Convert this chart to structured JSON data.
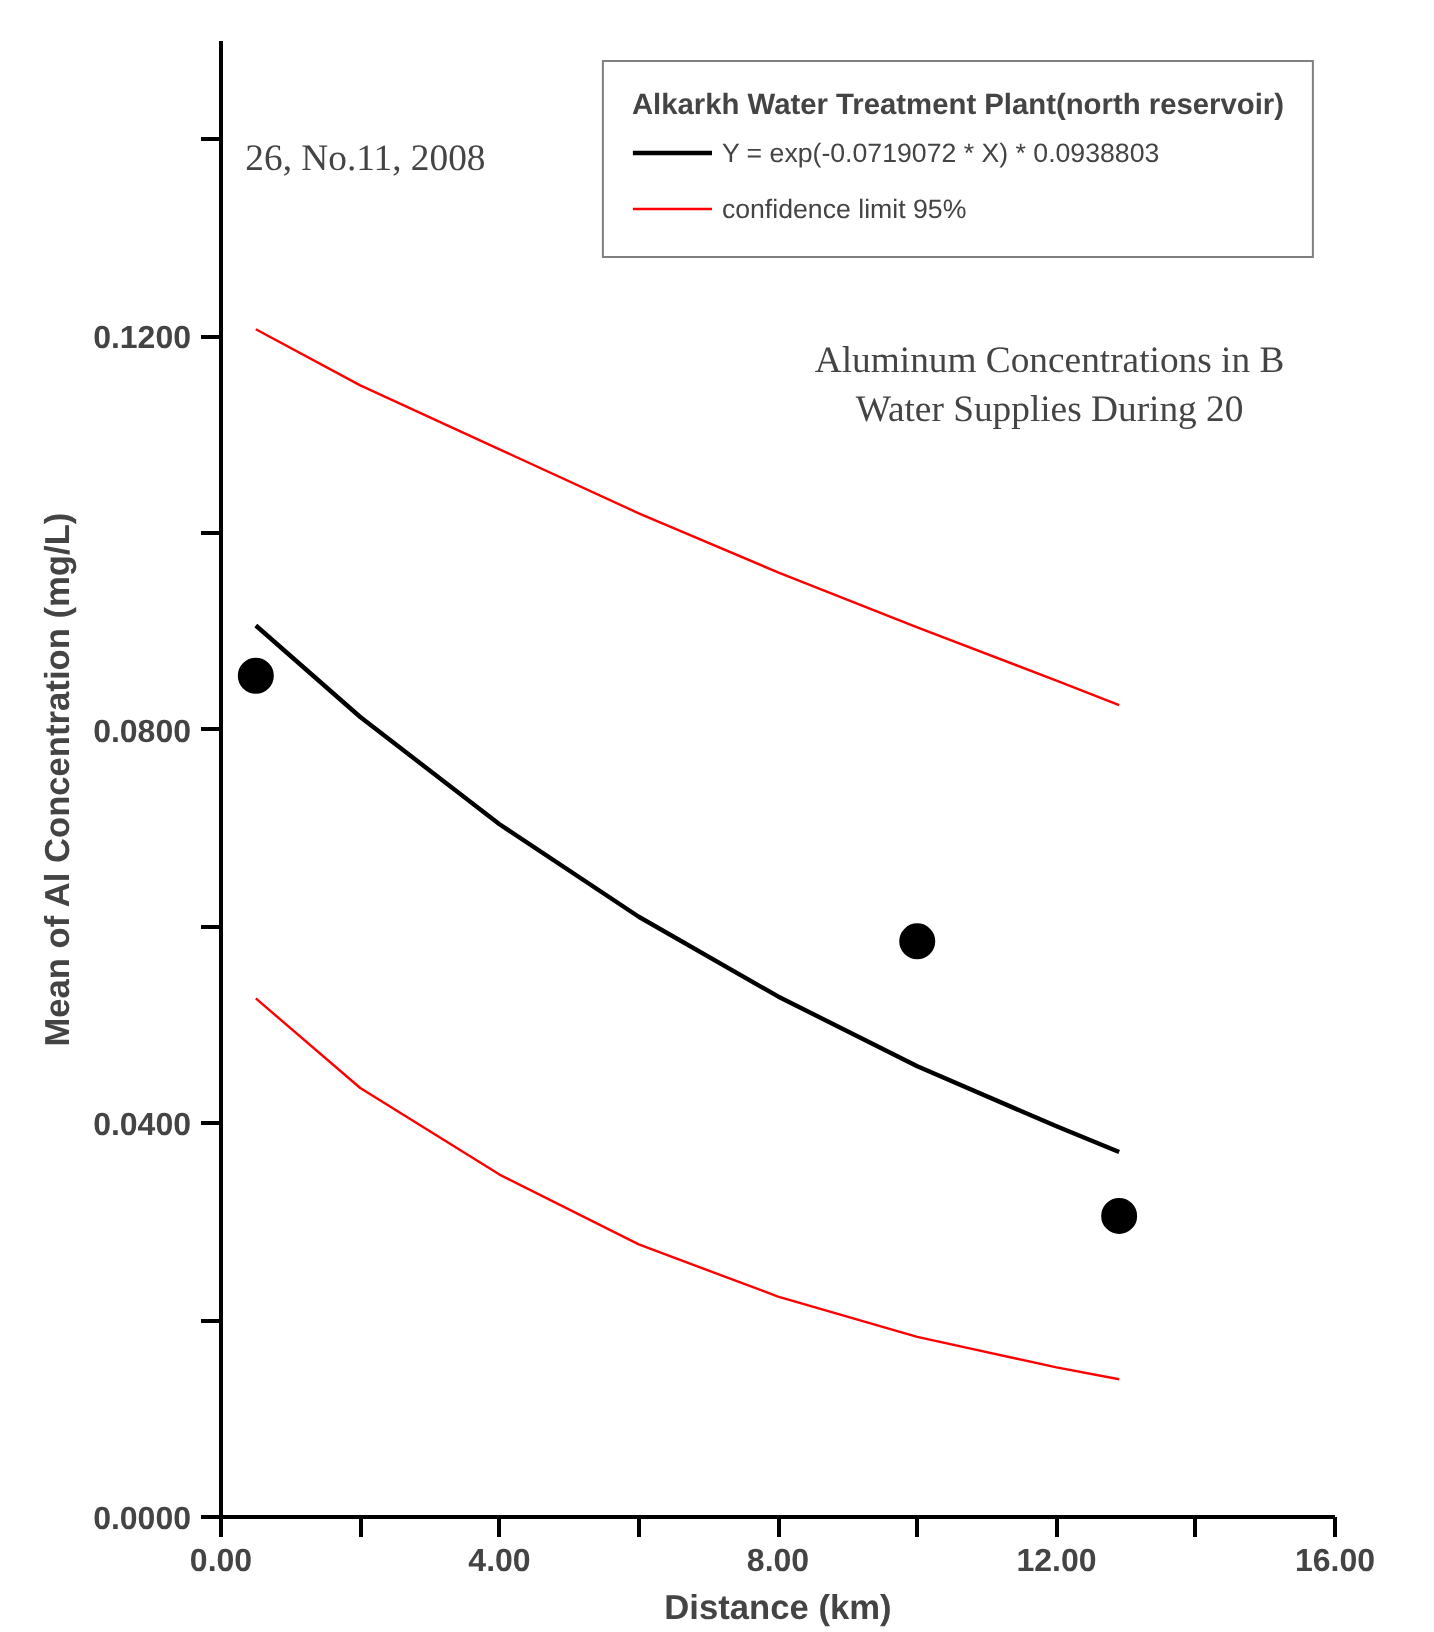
{
  "chart_data": {
    "type": "scatter",
    "xlabel": "Distance (km)",
    "ylabel": "Mean of Al Concentration (mg/L)",
    "legend_title": "Alkarkh Water Treatment Plant(north reservoir)",
    "xlim": [
      0,
      16
    ],
    "ylim": [
      0,
      0.15
    ],
    "xticks": [
      {
        "value": 0,
        "label": "0.00"
      },
      {
        "value": 2,
        "label": null
      },
      {
        "value": 4,
        "label": "4.00"
      },
      {
        "value": 6,
        "label": null
      },
      {
        "value": 8,
        "label": "8.00"
      },
      {
        "value": 10,
        "label": null
      },
      {
        "value": 12,
        "label": "12.00"
      },
      {
        "value": 14,
        "label": null
      },
      {
        "value": 16,
        "label": "16.00"
      }
    ],
    "yticks": [
      {
        "value": 0,
        "label": "0.0000"
      },
      {
        "value": 0.02,
        "label": null
      },
      {
        "value": 0.04,
        "label": "0.0400"
      },
      {
        "value": 0.06,
        "label": null
      },
      {
        "value": 0.08,
        "label": "0.0800"
      },
      {
        "value": 0.1,
        "label": null
      },
      {
        "value": 0.12,
        "label": "0.1200"
      },
      {
        "value": 0.14,
        "label": null
      }
    ],
    "grid": false,
    "legend": "top right",
    "series": [
      {
        "marker": "circle",
        "color": "#000000",
        "x": [
          0.5,
          10.0,
          12.9
        ],
        "values": [
          0.0855,
          0.0585,
          0.0306
        ]
      },
      {
        "type": "line",
        "name": "Y = exp(-0.0719072 * X) * 0.0938803",
        "color": "#000000",
        "x": [
          0.5,
          2,
          4,
          6,
          8,
          10,
          12,
          12.9
        ],
        "values": [
          0.0906,
          0.0813,
          0.0704,
          0.061,
          0.0529,
          0.0458,
          0.0397,
          0.0371
        ]
      },
      {
        "type": "line",
        "name": "confidence limit 95%",
        "color": "#ff0000",
        "x": [
          0.5,
          2,
          4,
          6,
          8,
          10,
          12,
          12.9
        ],
        "values": [
          0.1207,
          0.115,
          0.1085,
          0.102,
          0.096,
          0.0904,
          0.085,
          0.0825
        ]
      },
      {
        "type": "line",
        "color": "#ff0000",
        "x": [
          0.5,
          2,
          4,
          6,
          8,
          10,
          12,
          12.9
        ],
        "values": [
          0.0527,
          0.0436,
          0.0348,
          0.0277,
          0.0224,
          0.0183,
          0.0152,
          0.014
        ]
      }
    ],
    "annotations": [
      "26, No.11, 2008",
      "Aluminum Concentrations in B",
      "Water Supplies During 20"
    ]
  }
}
